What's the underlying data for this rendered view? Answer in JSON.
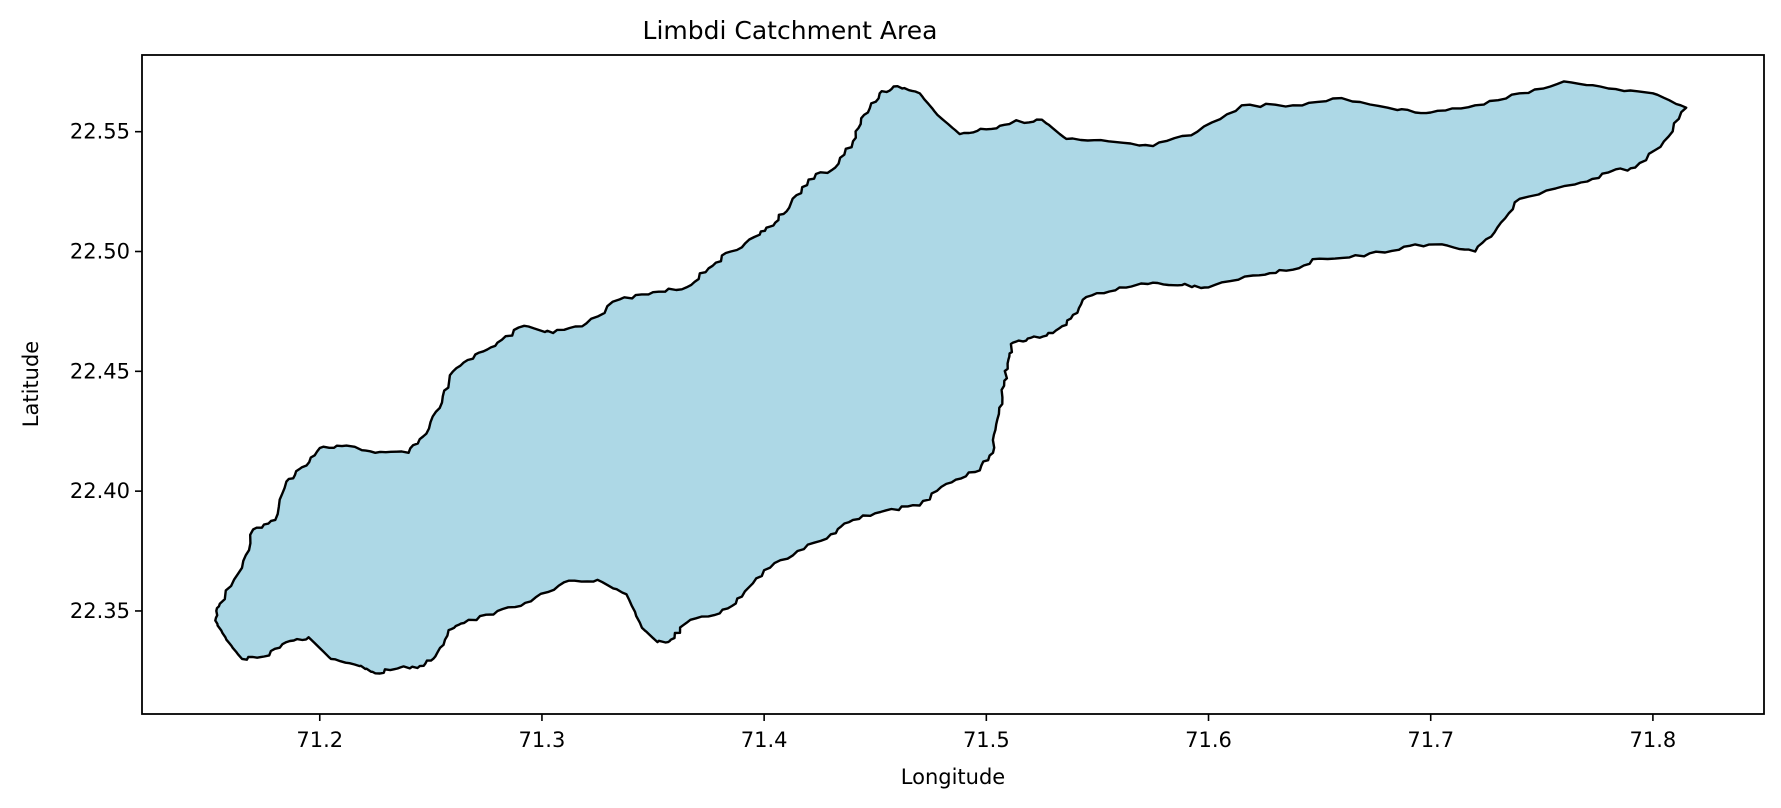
{
  "chart_data": {
    "type": "map",
    "title": "Limbdi Catchment Area",
    "xlabel": "Longitude",
    "ylabel": "Latitude",
    "xlim": [
      71.12,
      71.85
    ],
    "ylim": [
      22.307,
      22.582
    ],
    "x_ticks": [
      71.2,
      71.3,
      71.4,
      71.5,
      71.6,
      71.7,
      71.8
    ],
    "x_tick_labels": [
      "71.2",
      "71.3",
      "71.4",
      "71.5",
      "71.6",
      "71.7",
      "71.8"
    ],
    "y_ticks": [
      22.35,
      22.4,
      22.45,
      22.5,
      22.55
    ],
    "y_tick_labels": [
      "22.35",
      "22.40",
      "22.45",
      "22.50",
      "22.55"
    ],
    "grid": false,
    "fill_color": "#add8e6",
    "edge_color": "#000000",
    "polygon": [
      [
        71.155,
        22.353
      ],
      [
        71.165,
        22.368
      ],
      [
        71.17,
        22.384
      ],
      [
        71.18,
        22.388
      ],
      [
        71.185,
        22.404
      ],
      [
        71.192,
        22.41
      ],
      [
        71.2,
        22.418
      ],
      [
        71.212,
        22.419
      ],
      [
        71.225,
        22.416
      ],
      [
        71.24,
        22.416
      ],
      [
        71.248,
        22.424
      ],
      [
        71.255,
        22.437
      ],
      [
        71.26,
        22.45
      ],
      [
        71.27,
        22.457
      ],
      [
        71.28,
        22.462
      ],
      [
        71.292,
        22.469
      ],
      [
        71.305,
        22.466
      ],
      [
        71.32,
        22.47
      ],
      [
        71.335,
        22.48
      ],
      [
        71.35,
        22.483
      ],
      [
        71.365,
        22.485
      ],
      [
        71.375,
        22.493
      ],
      [
        71.385,
        22.5
      ],
      [
        71.398,
        22.507
      ],
      [
        71.405,
        22.512
      ],
      [
        71.412,
        22.52
      ],
      [
        71.42,
        22.53
      ],
      [
        71.432,
        22.535
      ],
      [
        71.44,
        22.546
      ],
      [
        71.445,
        22.557
      ],
      [
        71.452,
        22.566
      ],
      [
        71.46,
        22.569
      ],
      [
        71.47,
        22.566
      ],
      [
        71.478,
        22.557
      ],
      [
        71.488,
        22.549
      ],
      [
        71.5,
        22.551
      ],
      [
        71.512,
        22.554
      ],
      [
        71.525,
        22.555
      ],
      [
        71.536,
        22.547
      ],
      [
        71.555,
        22.546
      ],
      [
        71.575,
        22.544
      ],
      [
        71.595,
        22.55
      ],
      [
        71.615,
        22.561
      ],
      [
        71.638,
        22.561
      ],
      [
        71.66,
        22.564
      ],
      [
        71.685,
        22.559
      ],
      [
        71.7,
        22.558
      ],
      [
        71.72,
        22.561
      ],
      [
        71.74,
        22.566
      ],
      [
        71.76,
        22.571
      ],
      [
        71.78,
        22.568
      ],
      [
        71.8,
        22.566
      ],
      [
        71.815,
        22.56
      ],
      [
        71.805,
        22.546
      ],
      [
        71.792,
        22.535
      ],
      [
        71.78,
        22.533
      ],
      [
        71.765,
        22.528
      ],
      [
        71.74,
        22.522
      ],
      [
        71.73,
        22.51
      ],
      [
        71.72,
        22.5
      ],
      [
        71.705,
        22.503
      ],
      [
        71.688,
        22.502
      ],
      [
        71.67,
        22.498
      ],
      [
        71.65,
        22.497
      ],
      [
        71.635,
        22.492
      ],
      [
        71.62,
        22.49
      ],
      [
        71.6,
        22.485
      ],
      [
        71.588,
        22.486
      ],
      [
        71.575,
        22.487
      ],
      [
        71.56,
        22.485
      ],
      [
        71.545,
        22.481
      ],
      [
        71.538,
        22.472
      ],
      [
        71.53,
        22.466
      ],
      [
        71.52,
        22.464
      ],
      [
        71.512,
        22.462
      ],
      [
        71.51,
        22.455
      ],
      [
        71.508,
        22.444
      ],
      [
        71.505,
        22.43
      ],
      [
        71.503,
        22.416
      ],
      [
        71.495,
        22.408
      ],
      [
        71.482,
        22.403
      ],
      [
        71.47,
        22.394
      ],
      [
        71.455,
        22.392
      ],
      [
        71.44,
        22.388
      ],
      [
        71.43,
        22.382
      ],
      [
        71.415,
        22.375
      ],
      [
        71.4,
        22.367
      ],
      [
        71.39,
        22.356
      ],
      [
        71.38,
        22.349
      ],
      [
        71.365,
        22.345
      ],
      [
        71.358,
        22.338
      ],
      [
        71.352,
        22.337
      ],
      [
        71.345,
        22.343
      ],
      [
        71.338,
        22.357
      ],
      [
        71.325,
        22.363
      ],
      [
        71.31,
        22.362
      ],
      [
        71.295,
        22.354
      ],
      [
        71.28,
        22.35
      ],
      [
        71.265,
        22.345
      ],
      [
        71.258,
        22.342
      ],
      [
        71.252,
        22.331
      ],
      [
        71.245,
        22.327
      ],
      [
        71.235,
        22.326
      ],
      [
        71.225,
        22.324
      ],
      [
        71.218,
        22.327
      ],
      [
        71.205,
        22.33
      ],
      [
        71.195,
        22.339
      ],
      [
        71.185,
        22.337
      ],
      [
        71.175,
        22.331
      ],
      [
        71.165,
        22.33
      ],
      [
        71.158,
        22.338
      ],
      [
        71.153,
        22.346
      ]
    ]
  }
}
